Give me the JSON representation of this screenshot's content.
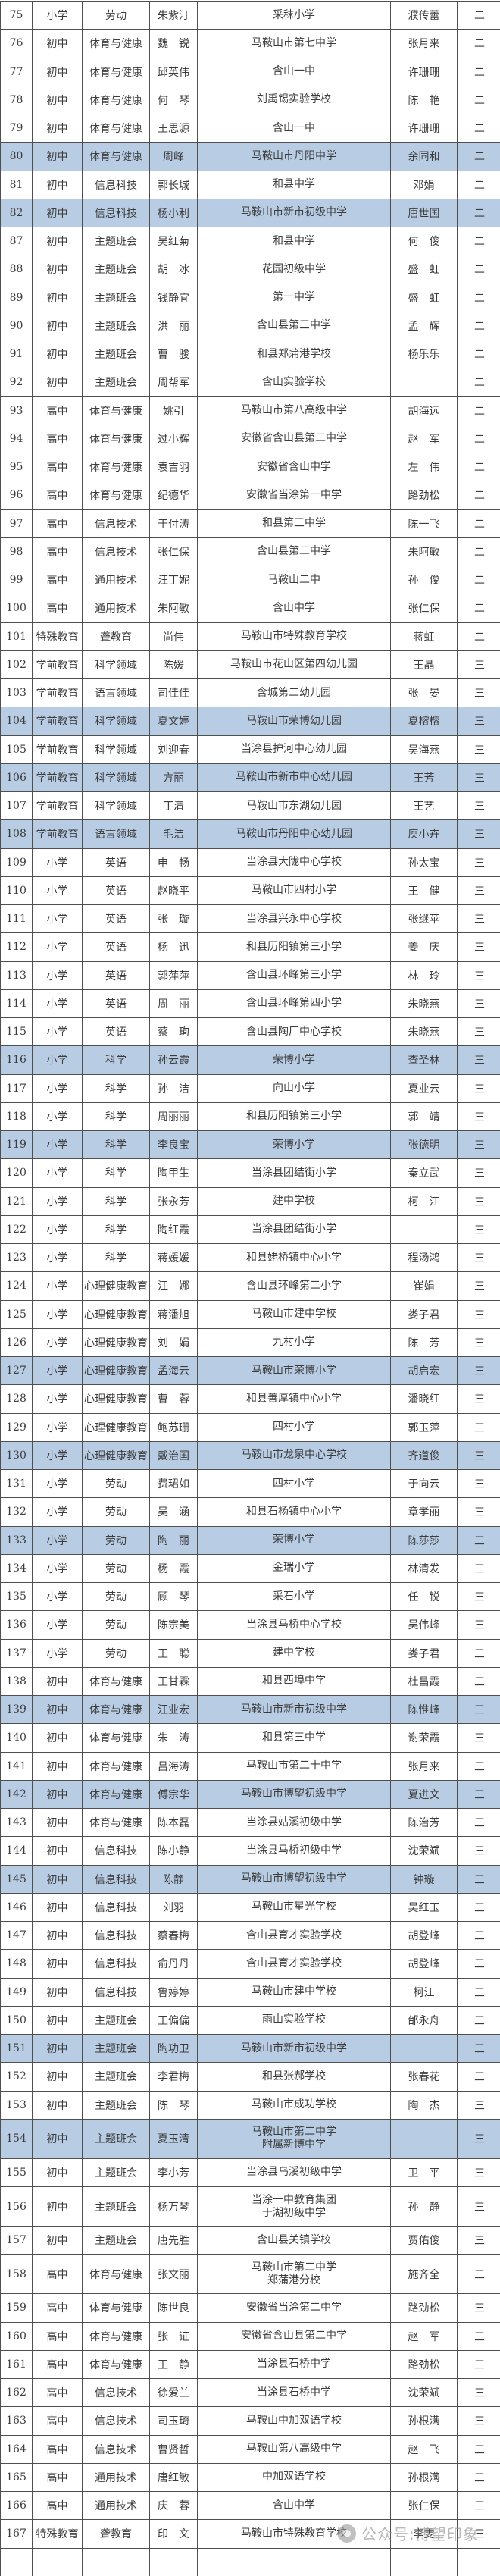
{
  "colors": {
    "highlight": "#b8cce4",
    "border": "#4f4f4f",
    "text": "#3c3c3c",
    "watermark_gray": "#8f8f8f"
  },
  "watermark": {
    "text": "公众号:博望印象"
  },
  "table": {
    "fields": [
      "no",
      "level",
      "subject",
      "name",
      "school",
      "advisor",
      "grade"
    ],
    "rows": [
      {
        "no": "75",
        "level": "小学",
        "subject": "劳动",
        "name": "朱紫汀",
        "school": "采秣小学",
        "advisor": "濮传蕾",
        "grade": "二",
        "hl": false
      },
      {
        "no": "76",
        "level": "初中",
        "subject": "体育与健康",
        "name": "魏　锐",
        "school": "马鞍山市第七中学",
        "advisor": "张月来",
        "grade": "二",
        "hl": false
      },
      {
        "no": "77",
        "level": "初中",
        "subject": "体育与健康",
        "name": "邱英伟",
        "school": "含山一中",
        "advisor": "许珊珊",
        "grade": "二",
        "hl": false
      },
      {
        "no": "78",
        "level": "初中",
        "subject": "体育与健康",
        "name": "何　琴",
        "school": "刘禹锡实验学校",
        "advisor": "陈　艳",
        "grade": "二",
        "hl": false
      },
      {
        "no": "79",
        "level": "初中",
        "subject": "体育与健康",
        "name": "王思源",
        "school": "含山一中",
        "advisor": "许珊珊",
        "grade": "二",
        "hl": false
      },
      {
        "no": "80",
        "level": "初中",
        "subject": "体育与健康",
        "name": "周峰",
        "school": "马鞍山市丹阳中学",
        "advisor": "余同和",
        "grade": "二",
        "hl": true
      },
      {
        "no": "81",
        "level": "初中",
        "subject": "信息科技",
        "name": "郭长城",
        "school": "和县中学",
        "advisor": "邓娟",
        "grade": "二",
        "hl": false
      },
      {
        "no": "82",
        "level": "初中",
        "subject": "信息科技",
        "name": "杨小利",
        "school": "马鞍山市新市初级中学",
        "advisor": "唐世国",
        "grade": "二",
        "hl": true
      },
      {
        "no": "87",
        "level": "初中",
        "subject": "主题班会",
        "name": "吴红菊",
        "school": "和县中学",
        "advisor": "何　俊",
        "grade": "二",
        "hl": false
      },
      {
        "no": "88",
        "level": "初中",
        "subject": "主题班会",
        "name": "胡　冰",
        "school": "花园初级中学",
        "advisor": "盛　虹",
        "grade": "二",
        "hl": false
      },
      {
        "no": "89",
        "level": "初中",
        "subject": "主题班会",
        "name": "钱静宜",
        "school": "第一中学",
        "advisor": "盛　虹",
        "grade": "二",
        "hl": false
      },
      {
        "no": "90",
        "level": "初中",
        "subject": "主题班会",
        "name": "洪　丽",
        "school": "含山县第三中学",
        "advisor": "孟　辉",
        "grade": "二",
        "hl": false
      },
      {
        "no": "91",
        "level": "初中",
        "subject": "主题班会",
        "name": "曹　骏",
        "school": "和县郑蒲港学校",
        "advisor": "杨乐乐",
        "grade": "二",
        "hl": false
      },
      {
        "no": "92",
        "level": "初中",
        "subject": "主题班会",
        "name": "周帮军",
        "school": "含山实验学校",
        "advisor": "",
        "grade": "二",
        "hl": false
      },
      {
        "no": "93",
        "level": "高中",
        "subject": "体育与健康",
        "name": "姚引",
        "school": "马鞍山市第八高级中学",
        "advisor": "胡海远",
        "grade": "二",
        "hl": false
      },
      {
        "no": "94",
        "level": "高中",
        "subject": "体育与健康",
        "name": "过小辉",
        "school": "安徽省含山县第二中学",
        "advisor": "赵　军",
        "grade": "二",
        "hl": false
      },
      {
        "no": "95",
        "level": "高中",
        "subject": "体育与健康",
        "name": "袁吉羽",
        "school": "安徽省含山中学",
        "advisor": "左　伟",
        "grade": "二",
        "hl": false
      },
      {
        "no": "96",
        "level": "高中",
        "subject": "体育与健康",
        "name": "纪德华",
        "school": "安徽省当涂第一中学",
        "advisor": "路劲松",
        "grade": "二",
        "hl": false
      },
      {
        "no": "97",
        "level": "高中",
        "subject": "信息技术",
        "name": "于付涛",
        "school": "和县第三中学",
        "advisor": "陈一飞",
        "grade": "二",
        "hl": false
      },
      {
        "no": "98",
        "level": "高中",
        "subject": "信息技术",
        "name": "张仁保",
        "school": "含山县第二中学",
        "advisor": "朱阿敏",
        "grade": "二",
        "hl": false
      },
      {
        "no": "99",
        "level": "高中",
        "subject": "通用技术",
        "name": "汪丁妮",
        "school": "马鞍山二中",
        "advisor": "孙　俊",
        "grade": "二",
        "hl": false
      },
      {
        "no": "100",
        "level": "高中",
        "subject": "通用技术",
        "name": "朱阿敏",
        "school": "含山中学",
        "advisor": "张仁保",
        "grade": "二",
        "hl": false
      },
      {
        "no": "101",
        "level": "特殊教育",
        "subject": "聋教育",
        "name": "尚伟",
        "school": "马鞍山市特殊教育学校",
        "advisor": "蒋虹",
        "grade": "二",
        "hl": false
      },
      {
        "no": "102",
        "level": "学前教育",
        "subject": "科学领域",
        "name": "陈媛",
        "school": "马鞍山市花山区第四幼儿园",
        "advisor": "王晶",
        "grade": "三",
        "hl": false
      },
      {
        "no": "103",
        "level": "学前教育",
        "subject": "语言领域",
        "name": "司佳佳",
        "school": "含城第二幼儿园",
        "advisor": "张　晏",
        "grade": "三",
        "hl": false
      },
      {
        "no": "104",
        "level": "学前教育",
        "subject": "科学领域",
        "name": "夏文婷",
        "school": "马鞍山市荣博幼儿园",
        "advisor": "夏榕榕",
        "grade": "三",
        "hl": true
      },
      {
        "no": "105",
        "level": "学前教育",
        "subject": "科学领域",
        "name": "刘迎春",
        "school": "当涂县护河中心幼儿园",
        "advisor": "吴海燕",
        "grade": "三",
        "hl": false
      },
      {
        "no": "106",
        "level": "学前教育",
        "subject": "科学领域",
        "name": "方丽",
        "school": "马鞍山市新市中心幼儿园",
        "advisor": "王芳",
        "grade": "三",
        "hl": true
      },
      {
        "no": "107",
        "level": "学前教育",
        "subject": "科学领域",
        "name": "丁清",
        "school": "马鞍山市东湖幼儿园",
        "advisor": "王艺",
        "grade": "三",
        "hl": false
      },
      {
        "no": "108",
        "level": "学前教育",
        "subject": "语言领域",
        "name": "毛洁",
        "school": "马鞍山市丹阳中心幼儿园",
        "advisor": "庾小卉",
        "grade": "三",
        "hl": true
      },
      {
        "no": "109",
        "level": "小学",
        "subject": "英语",
        "name": "申　畅",
        "school": "当涂县大陇中心学校",
        "advisor": "孙太宝",
        "grade": "三",
        "hl": false
      },
      {
        "no": "110",
        "level": "小学",
        "subject": "英语",
        "name": "赵晓平",
        "school": "马鞍山市四村小学",
        "advisor": "王　健",
        "grade": "三",
        "hl": false
      },
      {
        "no": "111",
        "level": "小学",
        "subject": "英语",
        "name": "张　璇",
        "school": "当涂县兴永中心学校",
        "advisor": "张继苹",
        "grade": "三",
        "hl": false
      },
      {
        "no": "112",
        "level": "小学",
        "subject": "英语",
        "name": "杨　迅",
        "school": "和县历阳镇第三小学",
        "advisor": "姜　庆",
        "grade": "三",
        "hl": false
      },
      {
        "no": "113",
        "level": "小学",
        "subject": "英语",
        "name": "郭萍萍",
        "school": "含山县环峰第三小学",
        "advisor": "林　玲",
        "grade": "三",
        "hl": false
      },
      {
        "no": "114",
        "level": "小学",
        "subject": "英语",
        "name": "周　丽",
        "school": "含山县环峰第四小学",
        "advisor": "朱晓燕",
        "grade": "三",
        "hl": false
      },
      {
        "no": "115",
        "level": "小学",
        "subject": "英语",
        "name": "蔡　珣",
        "school": "含山县陶厂中心学校",
        "advisor": "朱晓燕",
        "grade": "三",
        "hl": false
      },
      {
        "no": "116",
        "level": "小学",
        "subject": "科学",
        "name": "孙云霞",
        "school": "荣博小学",
        "advisor": "查圣林",
        "grade": "三",
        "hl": true
      },
      {
        "no": "117",
        "level": "小学",
        "subject": "科学",
        "name": "孙　洁",
        "school": "向山小学",
        "advisor": "夏业云",
        "grade": "三",
        "hl": false
      },
      {
        "no": "118",
        "level": "小学",
        "subject": "科学",
        "name": "周丽丽",
        "school": "和县历阳镇第三小学",
        "advisor": "郭　靖",
        "grade": "三",
        "hl": false
      },
      {
        "no": "119",
        "level": "小学",
        "subject": "科学",
        "name": "李良宝",
        "school": "荣博小学",
        "advisor": "张德明",
        "grade": "三",
        "hl": true
      },
      {
        "no": "120",
        "level": "小学",
        "subject": "科学",
        "name": "陶甲生",
        "school": "当涂县团结街小学",
        "advisor": "秦立武",
        "grade": "三",
        "hl": false
      },
      {
        "no": "121",
        "level": "小学",
        "subject": "科学",
        "name": "张永芳",
        "school": "建中学校",
        "advisor": "柯　江",
        "grade": "三",
        "hl": false
      },
      {
        "no": "122",
        "level": "小学",
        "subject": "科学",
        "name": "陶红霞",
        "school": "当涂县团结街小学",
        "advisor": "",
        "grade": "三",
        "hl": false
      },
      {
        "no": "123",
        "level": "小学",
        "subject": "科学",
        "name": "蒋媛媛",
        "school": "和县姥桥镇中心小学",
        "advisor": "程汤鸿",
        "grade": "三",
        "hl": false
      },
      {
        "no": "124",
        "level": "小学",
        "subject": "心理健康教育",
        "name": "江　娜",
        "school": "含山县环峰第二小学",
        "advisor": "崔娟",
        "grade": "三",
        "hl": false
      },
      {
        "no": "125",
        "level": "小学",
        "subject": "心理健康教育",
        "name": "蒋潘旭",
        "school": "马鞍山市建中学校",
        "advisor": "娄子君",
        "grade": "三",
        "hl": false
      },
      {
        "no": "126",
        "level": "小学",
        "subject": "心理健康教育",
        "name": "刘　娟",
        "school": "九村小学",
        "advisor": "陈　芳",
        "grade": "三",
        "hl": false
      },
      {
        "no": "127",
        "level": "小学",
        "subject": "心理健康教育",
        "name": "孟海云",
        "school": "马鞍山市荣博小学",
        "advisor": "胡启宏",
        "grade": "三",
        "hl": true
      },
      {
        "no": "128",
        "level": "小学",
        "subject": "心理健康教育",
        "name": "曹　蓉",
        "school": "和县善厚镇中心小学",
        "advisor": "潘晓红",
        "grade": "三",
        "hl": false
      },
      {
        "no": "129",
        "level": "小学",
        "subject": "心理健康教育",
        "name": "鲍苏珊",
        "school": "四村小学",
        "advisor": "郭玉萍",
        "grade": "三",
        "hl": false
      },
      {
        "no": "130",
        "level": "小学",
        "subject": "心理健康教育",
        "name": "戴治国",
        "school": "马鞍山市龙泉中心学校",
        "advisor": "齐道俊",
        "grade": "三",
        "hl": true
      },
      {
        "no": "131",
        "level": "小学",
        "subject": "劳动",
        "name": "费珺如",
        "school": "四村小学",
        "advisor": "于向云",
        "grade": "三",
        "hl": false
      },
      {
        "no": "132",
        "level": "小学",
        "subject": "劳动",
        "name": "吴　涵",
        "school": "和县石杨镇中心小学",
        "advisor": "章孝丽",
        "grade": "三",
        "hl": false
      },
      {
        "no": "133",
        "level": "小学",
        "subject": "劳动",
        "name": "陶　丽",
        "school": "荣博小学",
        "advisor": "陈莎莎",
        "grade": "三",
        "hl": true
      },
      {
        "no": "134",
        "level": "小学",
        "subject": "劳动",
        "name": "杨　霞",
        "school": "金瑞小学",
        "advisor": "林清发",
        "grade": "三",
        "hl": false
      },
      {
        "no": "135",
        "level": "小学",
        "subject": "劳动",
        "name": "顾　琴",
        "school": "采石小学",
        "advisor": "任　锐",
        "grade": "三",
        "hl": false
      },
      {
        "no": "136",
        "level": "小学",
        "subject": "劳动",
        "name": "陈宗美",
        "school": "当涂县马桥中心学校",
        "advisor": "吴伟峰",
        "grade": "三",
        "hl": false
      },
      {
        "no": "137",
        "level": "小学",
        "subject": "劳动",
        "name": "王　聪",
        "school": "建中学校",
        "advisor": "娄子君",
        "grade": "三",
        "hl": false
      },
      {
        "no": "138",
        "level": "初中",
        "subject": "体育与健康",
        "name": "王甘霖",
        "school": "和县西埠中学",
        "advisor": "杜昌霞",
        "grade": "三",
        "hl": false
      },
      {
        "no": "139",
        "level": "初中",
        "subject": "体育与健康",
        "name": "汪业宏",
        "school": "马鞍山市新市初级中学",
        "advisor": "陈惟峰",
        "grade": "三",
        "hl": true
      },
      {
        "no": "140",
        "level": "初中",
        "subject": "体育与健康",
        "name": "朱　涛",
        "school": "和县第三中学",
        "advisor": "谢荣霞",
        "grade": "三",
        "hl": false
      },
      {
        "no": "141",
        "level": "初中",
        "subject": "体育与健康",
        "name": "吕海涛",
        "school": "马鞍山市第二十中学",
        "advisor": "张月来",
        "grade": "三",
        "hl": false
      },
      {
        "no": "142",
        "level": "初中",
        "subject": "体育与健康",
        "name": "傅宗华",
        "school": "马鞍山市博望初级中学",
        "advisor": "夏进文",
        "grade": "三",
        "hl": true
      },
      {
        "no": "143",
        "level": "初中",
        "subject": "体育与健康",
        "name": "陈本磊",
        "school": "当涂县姑溪初级中学",
        "advisor": "陈治芳",
        "grade": "三",
        "hl": false
      },
      {
        "no": "144",
        "level": "初中",
        "subject": "信息科技",
        "name": "陈小静",
        "school": "当涂县马桥初级中学",
        "advisor": "沈荣斌",
        "grade": "三",
        "hl": false
      },
      {
        "no": "145",
        "level": "初中",
        "subject": "信息科技",
        "name": "陈静",
        "school": "马鞍山市博望初级中学",
        "advisor": "钟璇",
        "grade": "三",
        "hl": true
      },
      {
        "no": "146",
        "level": "初中",
        "subject": "信息科技",
        "name": "刘羽",
        "school": "马鞍山市星光学校",
        "advisor": "吴红玉",
        "grade": "三",
        "hl": false
      },
      {
        "no": "147",
        "level": "初中",
        "subject": "信息科技",
        "name": "蔡春梅",
        "school": "含山县育才实验学校",
        "advisor": "胡登峰",
        "grade": "三",
        "hl": false
      },
      {
        "no": "148",
        "level": "初中",
        "subject": "信息科技",
        "name": "俞丹丹",
        "school": "含山县育才实验学校",
        "advisor": "胡登峰",
        "grade": "三",
        "hl": false
      },
      {
        "no": "149",
        "level": "初中",
        "subject": "信息科技",
        "name": "鲁婷婷",
        "school": "马鞍山市建中学校",
        "advisor": "柯江",
        "grade": "三",
        "hl": false
      },
      {
        "no": "150",
        "level": "初中",
        "subject": "主题班会",
        "name": "王偏偏",
        "school": "雨山实验学校",
        "advisor": "邰永舟",
        "grade": "三",
        "hl": false
      },
      {
        "no": "151",
        "level": "初中",
        "subject": "主题班会",
        "name": "陶功卫",
        "school": "马鞍山市新市初级中学",
        "advisor": "",
        "grade": "三",
        "hl": true
      },
      {
        "no": "152",
        "level": "初中",
        "subject": "主题班会",
        "name": "李君梅",
        "school": "和县张郝学校",
        "advisor": "张春花",
        "grade": "三",
        "hl": false
      },
      {
        "no": "153",
        "level": "初中",
        "subject": "主题班会",
        "name": "陈　琴",
        "school": "马鞍山市成功学校",
        "advisor": "陶　杰",
        "grade": "三",
        "hl": false
      },
      {
        "no": "154",
        "level": "初中",
        "subject": "主题班会",
        "name": "夏玉清",
        "school": "马鞍山市第二中学",
        "school2": "附属新博中学",
        "advisor": "",
        "grade": "三",
        "hl": true,
        "tall": true
      },
      {
        "no": "155",
        "level": "初中",
        "subject": "主题班会",
        "name": "李小芳",
        "school": "当涂县乌溪初级中学",
        "advisor": "卫　平",
        "grade": "三",
        "hl": false
      },
      {
        "no": "156",
        "level": "初中",
        "subject": "主题班会",
        "name": "杨万琴",
        "school": "当涂一中教育集团",
        "school2": "于湖初级中学",
        "advisor": "孙　静",
        "grade": "三",
        "hl": false,
        "tall": true
      },
      {
        "no": "157",
        "level": "初中",
        "subject": "主题班会",
        "name": "唐先胜",
        "school": "含山县关镇学校",
        "advisor": "贾佑俊",
        "grade": "三",
        "hl": false
      },
      {
        "no": "158",
        "level": "高中",
        "subject": "体育与健康",
        "name": "张文丽",
        "school": "马鞍山市第二中学",
        "school2": "郑蒲港分校",
        "advisor": "施齐全",
        "grade": "三",
        "hl": false,
        "tall": true
      },
      {
        "no": "159",
        "level": "高中",
        "subject": "体育与健康",
        "name": "陈世良",
        "school": "安徽省当涂第二中学",
        "advisor": "路劲松",
        "grade": "三",
        "hl": false
      },
      {
        "no": "160",
        "level": "高中",
        "subject": "体育与健康",
        "name": "张　证",
        "school": "安徽省含山县第二中学",
        "advisor": "赵　军",
        "grade": "三",
        "hl": false
      },
      {
        "no": "161",
        "level": "高中",
        "subject": "体育与健康",
        "name": "王　静",
        "school": "当涂县石桥中学",
        "advisor": "路劲松",
        "grade": "三",
        "hl": false
      },
      {
        "no": "162",
        "level": "高中",
        "subject": "信息技术",
        "name": "徐爱兰",
        "school": "当涂县石桥中学",
        "advisor": "沈荣斌",
        "grade": "三",
        "hl": false
      },
      {
        "no": "163",
        "level": "高中",
        "subject": "信息技术",
        "name": "司玉琦",
        "school": "马鞍山中加双语学校",
        "advisor": "孙根满",
        "grade": "三",
        "hl": false
      },
      {
        "no": "164",
        "level": "高中",
        "subject": "信息技术",
        "name": "曹贤哲",
        "school": "马鞍山第八高级中学",
        "advisor": "赵　飞",
        "grade": "三",
        "hl": false
      },
      {
        "no": "165",
        "level": "高中",
        "subject": "通用技术",
        "name": "唐红敏",
        "school": "中加双语学校",
        "advisor": "孙根满",
        "grade": "三",
        "hl": false
      },
      {
        "no": "166",
        "level": "高中",
        "subject": "通用技术",
        "name": "庆　蓉",
        "school": "含山中学",
        "advisor": "张仁保",
        "grade": "三",
        "hl": false
      },
      {
        "no": "167",
        "level": "特殊教育",
        "subject": "聋教育",
        "name": "印　文",
        "school": "马鞍山市特殊教育学校",
        "advisor": "李雯",
        "grade": "三",
        "hl": false
      }
    ]
  }
}
